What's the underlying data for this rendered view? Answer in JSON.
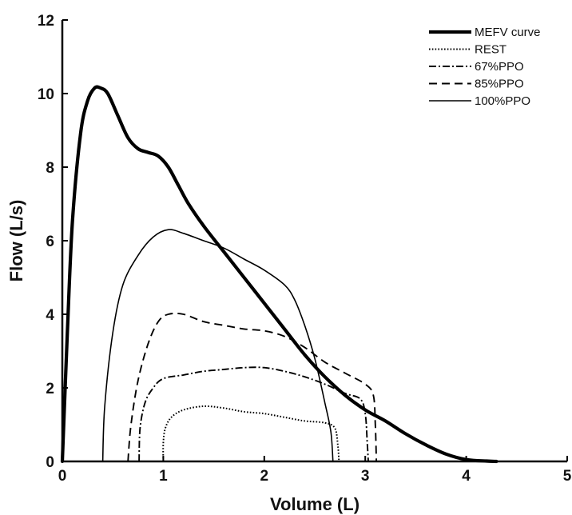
{
  "chart_data": {
    "type": "line",
    "xlabel": "Volume (L)",
    "ylabel": "Flow (L/s)",
    "xlim": [
      0,
      5
    ],
    "ylim": [
      0,
      12
    ],
    "xticks": [
      "0",
      "1",
      "2",
      "3",
      "4",
      "5"
    ],
    "yticks": [
      "0",
      "2",
      "4",
      "6",
      "8",
      "10",
      "12"
    ],
    "grid": false,
    "legend_position": "top-right",
    "series": [
      {
        "name": "MEFV curve",
        "style": "solid-thick",
        "color": "#000000",
        "points": [
          [
            0.0,
            0.0
          ],
          [
            0.05,
            3.5
          ],
          [
            0.1,
            6.5
          ],
          [
            0.18,
            8.9
          ],
          [
            0.25,
            9.8
          ],
          [
            0.32,
            10.15
          ],
          [
            0.38,
            10.15
          ],
          [
            0.45,
            10.0
          ],
          [
            0.55,
            9.4
          ],
          [
            0.65,
            8.8
          ],
          [
            0.75,
            8.5
          ],
          [
            0.85,
            8.4
          ],
          [
            0.95,
            8.3
          ],
          [
            1.05,
            8.0
          ],
          [
            1.15,
            7.5
          ],
          [
            1.25,
            7.0
          ],
          [
            1.4,
            6.4
          ],
          [
            1.6,
            5.7
          ],
          [
            1.8,
            5.0
          ],
          [
            2.0,
            4.3
          ],
          [
            2.2,
            3.6
          ],
          [
            2.4,
            2.9
          ],
          [
            2.6,
            2.3
          ],
          [
            2.8,
            1.8
          ],
          [
            3.0,
            1.4
          ],
          [
            3.2,
            1.1
          ],
          [
            3.4,
            0.75
          ],
          [
            3.6,
            0.45
          ],
          [
            3.8,
            0.2
          ],
          [
            4.0,
            0.05
          ],
          [
            4.2,
            0.01
          ],
          [
            4.3,
            0.0
          ]
        ]
      },
      {
        "name": "REST",
        "style": "dotted",
        "color": "#000000",
        "points": [
          [
            1.0,
            0.0
          ],
          [
            1.0,
            0.5
          ],
          [
            1.02,
            0.9
          ],
          [
            1.08,
            1.2
          ],
          [
            1.2,
            1.4
          ],
          [
            1.4,
            1.5
          ],
          [
            1.6,
            1.45
          ],
          [
            1.8,
            1.35
          ],
          [
            2.0,
            1.3
          ],
          [
            2.2,
            1.2
          ],
          [
            2.4,
            1.1
          ],
          [
            2.6,
            1.05
          ],
          [
            2.7,
            0.9
          ],
          [
            2.73,
            0.4
          ],
          [
            2.74,
            0.0
          ]
        ]
      },
      {
        "name": "67%PPO",
        "style": "dash-dot",
        "color": "#000000",
        "points": [
          [
            0.76,
            0.0
          ],
          [
            0.77,
            0.9
          ],
          [
            0.82,
            1.6
          ],
          [
            0.9,
            2.0
          ],
          [
            1.0,
            2.25
          ],
          [
            1.2,
            2.35
          ],
          [
            1.4,
            2.45
          ],
          [
            1.6,
            2.5
          ],
          [
            1.8,
            2.55
          ],
          [
            2.0,
            2.55
          ],
          [
            2.2,
            2.45
          ],
          [
            2.4,
            2.3
          ],
          [
            2.6,
            2.1
          ],
          [
            2.8,
            1.85
          ],
          [
            2.95,
            1.7
          ],
          [
            3.0,
            1.3
          ],
          [
            3.02,
            0.5
          ],
          [
            3.03,
            0.0
          ]
        ]
      },
      {
        "name": "85%PPO",
        "style": "dashed",
        "color": "#000000",
        "points": [
          [
            0.65,
            0.0
          ],
          [
            0.68,
            1.0
          ],
          [
            0.75,
            2.2
          ],
          [
            0.85,
            3.2
          ],
          [
            0.95,
            3.8
          ],
          [
            1.05,
            4.0
          ],
          [
            1.2,
            4.0
          ],
          [
            1.4,
            3.8
          ],
          [
            1.6,
            3.7
          ],
          [
            1.8,
            3.6
          ],
          [
            2.0,
            3.55
          ],
          [
            2.2,
            3.4
          ],
          [
            2.4,
            3.1
          ],
          [
            2.6,
            2.7
          ],
          [
            2.8,
            2.4
          ],
          [
            3.0,
            2.1
          ],
          [
            3.08,
            1.8
          ],
          [
            3.1,
            1.0
          ],
          [
            3.11,
            0.0
          ]
        ]
      },
      {
        "name": "100%PPO",
        "style": "solid-thin",
        "color": "#000000",
        "points": [
          [
            0.4,
            0.0
          ],
          [
            0.42,
            1.5
          ],
          [
            0.5,
            3.5
          ],
          [
            0.6,
            4.8
          ],
          [
            0.75,
            5.6
          ],
          [
            0.9,
            6.1
          ],
          [
            1.05,
            6.3
          ],
          [
            1.2,
            6.2
          ],
          [
            1.4,
            6.0
          ],
          [
            1.6,
            5.8
          ],
          [
            1.8,
            5.5
          ],
          [
            2.0,
            5.2
          ],
          [
            2.2,
            4.8
          ],
          [
            2.3,
            4.4
          ],
          [
            2.4,
            3.7
          ],
          [
            2.5,
            2.8
          ],
          [
            2.6,
            1.6
          ],
          [
            2.66,
            0.8
          ],
          [
            2.68,
            0.0
          ]
        ]
      }
    ]
  }
}
